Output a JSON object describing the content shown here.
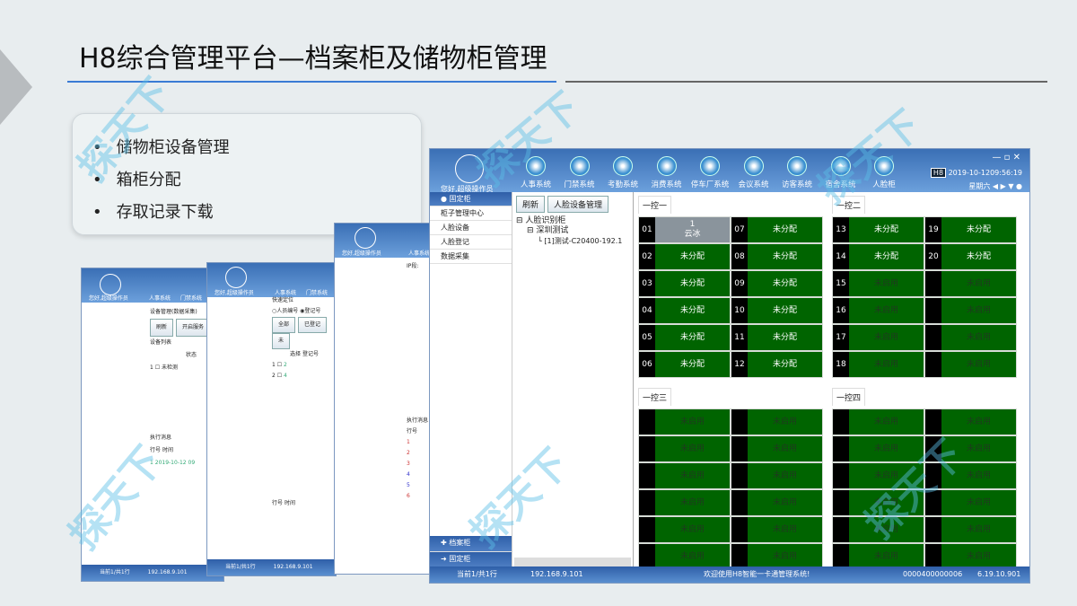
{
  "slide": {
    "title": "H8综合管理平台—档案柜及储物柜管理",
    "bullets": [
      "储物柜设备管理",
      "箱柜分配",
      "存取记录下载"
    ],
    "watermark": "探天下"
  },
  "main": {
    "greeting": "您好,超级操作员",
    "nav": [
      "人事系统",
      "门禁系统",
      "考勤系统",
      "消费系统",
      "停车厂系统",
      "会议系统",
      "访客系统",
      "宿舍系统",
      "人脸柜"
    ],
    "brand": "H8",
    "datetime": "2019-10-1209:56:19",
    "weekday": "星期六",
    "sidebar_header": "固定柜",
    "sidebar": [
      "柜子管理中心",
      "人脸设备",
      "人脸登记",
      "数据采集"
    ],
    "sidebar_bottom": [
      "档案柜",
      "固定柜"
    ],
    "toolbar": [
      "刷新",
      "人脸设备管理"
    ],
    "tree": [
      "人脸识别柜",
      "深圳测试",
      "[1]测试-C20400-192.1"
    ],
    "groups": [
      {
        "label": "一控一",
        "cells": [
          {
            "n": "01",
            "t": "1\n云冰",
            "s": "used"
          },
          {
            "n": "07",
            "t": "未分配"
          },
          {
            "n": "02",
            "t": "未分配"
          },
          {
            "n": "08",
            "t": "未分配"
          },
          {
            "n": "03",
            "t": "未分配"
          },
          {
            "n": "09",
            "t": "未分配"
          },
          {
            "n": "04",
            "t": "未分配"
          },
          {
            "n": "10",
            "t": "未分配"
          },
          {
            "n": "05",
            "t": "未分配"
          },
          {
            "n": "11",
            "t": "未分配"
          },
          {
            "n": "06",
            "t": "未分配"
          },
          {
            "n": "12",
            "t": "未分配"
          }
        ]
      },
      {
        "label": "一控二",
        "cells": [
          {
            "n": "13",
            "t": "未分配"
          },
          {
            "n": "19",
            "t": "未分配"
          },
          {
            "n": "14",
            "t": "未分配"
          },
          {
            "n": "20",
            "t": "未分配"
          },
          {
            "n": "15",
            "t": "未启用",
            "s": "off"
          },
          {
            "n": "",
            "t": "未启用",
            "s": "off"
          },
          {
            "n": "16",
            "t": "未启用",
            "s": "off"
          },
          {
            "n": "",
            "t": "未启用",
            "s": "off"
          },
          {
            "n": "17",
            "t": "未启用",
            "s": "off"
          },
          {
            "n": "",
            "t": "未启用",
            "s": "off"
          },
          {
            "n": "18",
            "t": "未启用",
            "s": "off"
          },
          {
            "n": "",
            "t": "未启用",
            "s": "off"
          }
        ]
      },
      {
        "label": "一控三",
        "cells": "off"
      },
      {
        "label": "一控四",
        "cells": "off"
      }
    ],
    "off_label": "未启用",
    "status": {
      "page": "当前1/共1行",
      "ip": "192.168.9.101",
      "welcome": "欢迎使用H8智能一卡通管理系统!",
      "code": "0000400000006",
      "version": "6.19.10.901"
    }
  },
  "bg_windows": {
    "w1": {
      "greeting": "您好,超级操作员",
      "nav": [
        "人事系统",
        "门禁系统"
      ],
      "title": "设备管理(数据采集)",
      "buttons": [
        "刷新",
        "开启服务"
      ],
      "list": "设备列表",
      "col": "状态",
      "row": [
        "1",
        "未检测"
      ],
      "log": "执行消息",
      "log_cols": [
        "行号",
        "时间"
      ],
      "log_row": [
        "1",
        "2019-10-12 09"
      ],
      "page": "当前1/共1行",
      "ip": "192.168.9.101"
    },
    "w2": {
      "greeting": "您好,超级操作员",
      "nav": [
        "人事系统",
        "门禁系统"
      ],
      "locate": "快速定位",
      "radios": [
        "人员编号",
        "登记号"
      ],
      "buttons": [
        "全部",
        "已登记",
        "未"
      ],
      "cols": [
        "选择",
        "登记号"
      ],
      "rows": [
        [
          "1",
          "2"
        ],
        [
          "2",
          "4"
        ]
      ],
      "log_cols": [
        "行号",
        "时间"
      ],
      "page": "当前1/共1行",
      "ip": "192.168.9.101"
    },
    "w3": {
      "greeting": "您好,超级操作员",
      "nav": [
        "人事系统"
      ],
      "ip_label": "IP段:",
      "log": "执行消息",
      "log_col": "行号",
      "rows": [
        "1",
        "2",
        "3",
        "4",
        "5",
        "6"
      ]
    }
  }
}
